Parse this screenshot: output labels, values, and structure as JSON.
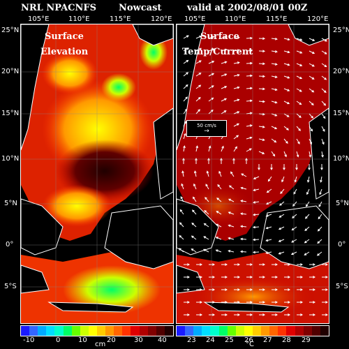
{
  "header": {
    "model": "NRL NPACNFS",
    "product": "Nowcast",
    "valid": "valid at 2002/08/01 00Z"
  },
  "axes": {
    "lon_left": [
      "105°E",
      "110°E",
      "115°E",
      "120°E"
    ],
    "lon_right": [
      "105°E",
      "110°E",
      "115°E",
      "120°E"
    ],
    "lat_left": [
      "25°N",
      "20°N",
      "15°N",
      "10°N",
      "5°N",
      "0°",
      "5°S"
    ],
    "lat_right": [
      "25°N",
      "20°N",
      "15°N",
      "10°N",
      "5°N",
      "0°",
      "5°S"
    ]
  },
  "left_panel": {
    "label_line1": "Surface",
    "label_line2": "Elevation"
  },
  "right_panel": {
    "label_line1": "Surface",
    "label_line2": "Temp/Current",
    "vector_legend": "50 cm/s"
  },
  "colorbar_left": {
    "ticks": [
      "-10",
      "0",
      "10",
      "20",
      "30",
      "40"
    ],
    "unit": "cm",
    "colors": [
      "#1a1aff",
      "#3366ff",
      "#00aaff",
      "#00ddff",
      "#00ffcc",
      "#00ff66",
      "#66ff00",
      "#ccff00",
      "#ffff00",
      "#ffcc00",
      "#ff9900",
      "#ff6600",
      "#ff3300",
      "#e00000",
      "#b00000",
      "#800000",
      "#500000",
      "#200000"
    ]
  },
  "colorbar_right": {
    "ticks": [
      "23",
      "24",
      "25",
      "26",
      "27",
      "28",
      "29"
    ],
    "unit": "°C",
    "colors": [
      "#1a1aff",
      "#3366ff",
      "#00aaff",
      "#00ddff",
      "#00ffcc",
      "#00ff66",
      "#66ff00",
      "#ccff00",
      "#ffff00",
      "#ffcc00",
      "#ff9900",
      "#ff6600",
      "#ff3300",
      "#e00000",
      "#b00000",
      "#800000",
      "#500000",
      "#200000"
    ]
  }
}
